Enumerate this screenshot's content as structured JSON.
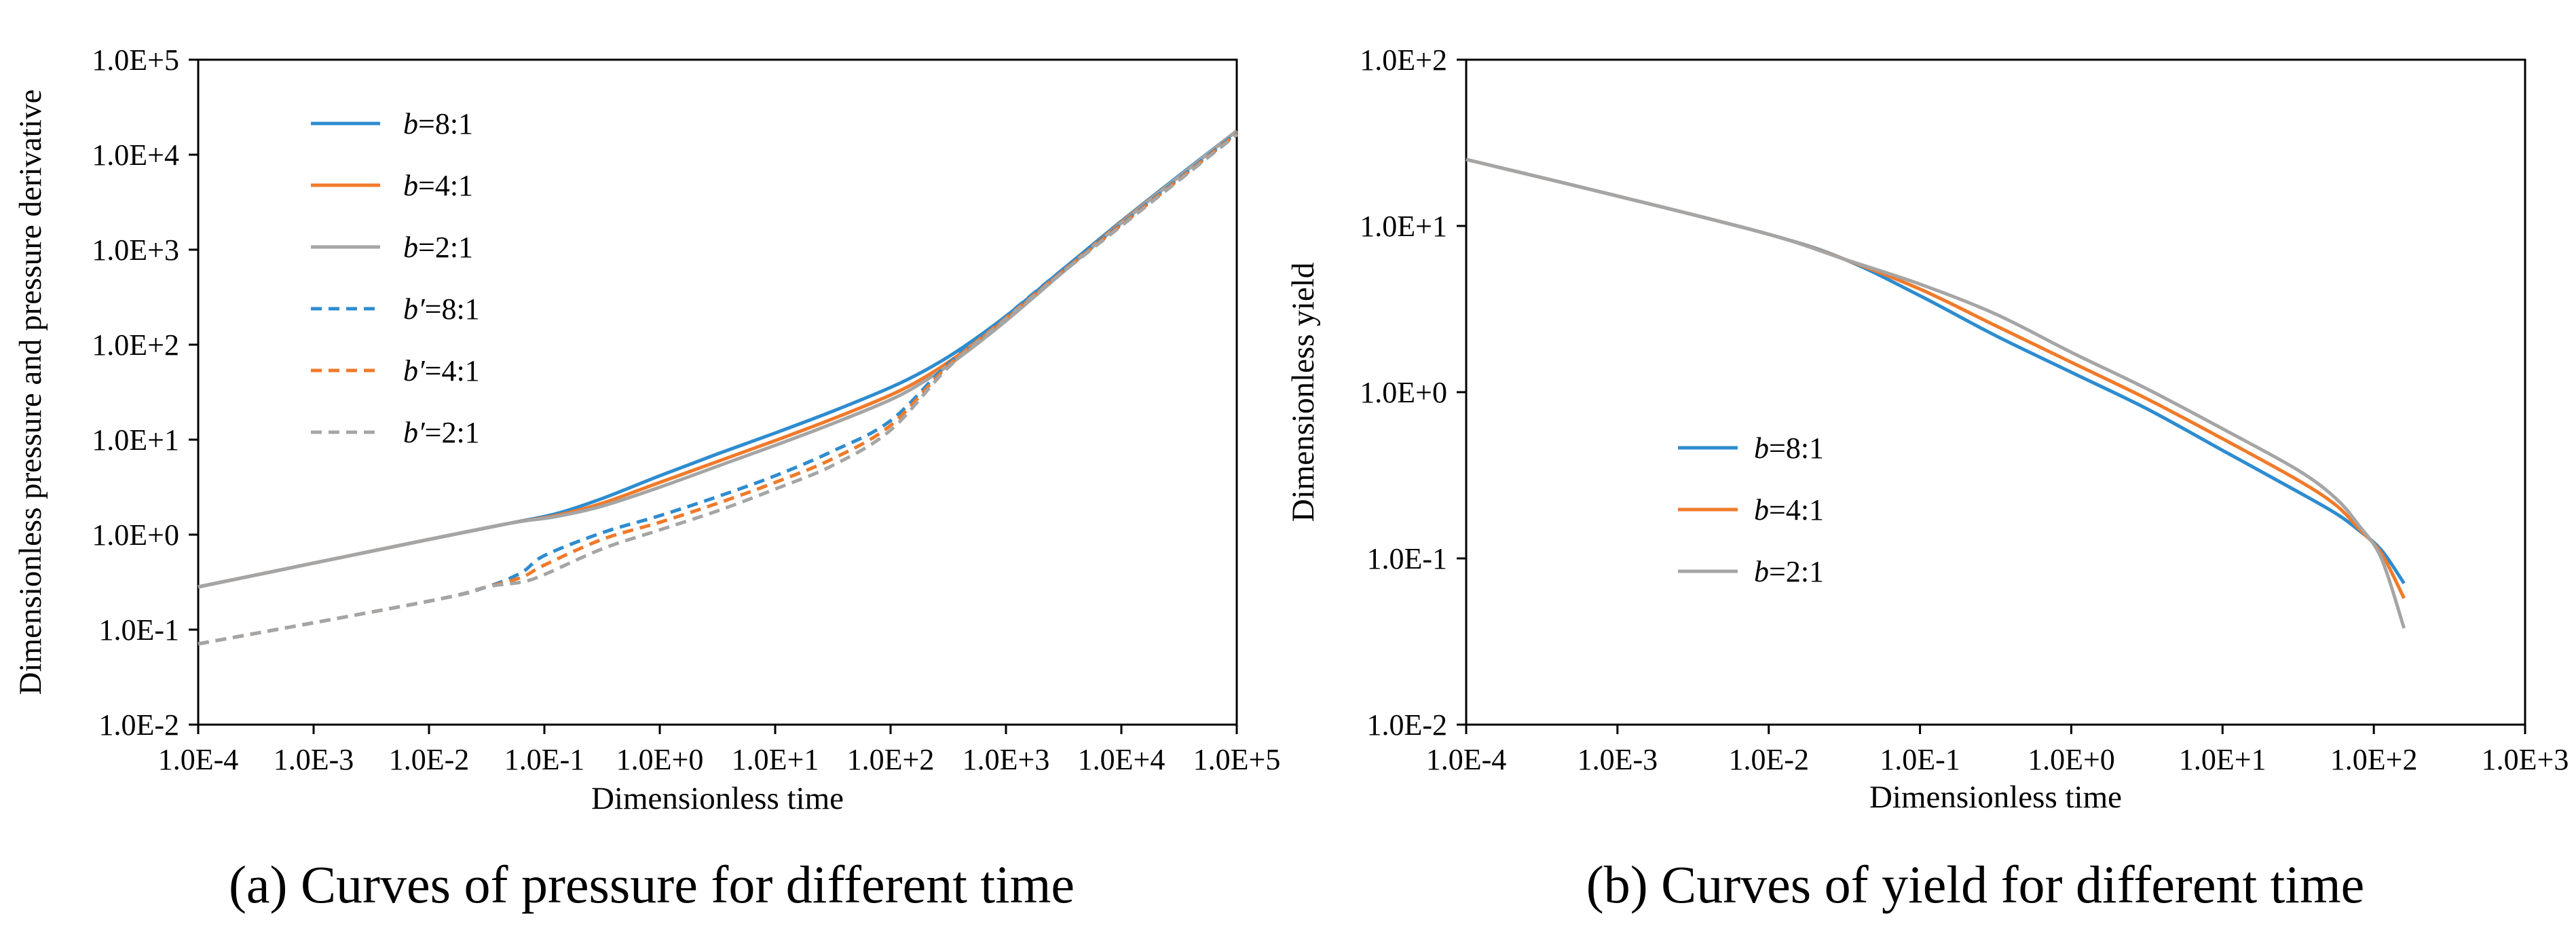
{
  "colors": {
    "blue": "#2e8ccf",
    "orange": "#f07a2a",
    "gray": "#a5a5a5"
  },
  "chart_data": [
    {
      "type": "line",
      "panel": "a",
      "caption": "(a) Curves of  pressure for different  time",
      "xlabel": "Dimensionless time",
      "ylabel": "Dimensionless pressure and pressure derivative",
      "x_scale": "log",
      "y_scale": "log",
      "xlim_exp": [
        -4,
        5
      ],
      "ylim_exp": [
        -2,
        5
      ],
      "xticks": [
        "1.0E-4",
        "1.0E-3",
        "1.0E-2",
        "1.0E-1",
        "1.0E+0",
        "1.0E+1",
        "1.0E+2",
        "1.0E+3",
        "1.0E+4",
        "1.0E+5"
      ],
      "yticks": [
        "1.0E-2",
        "1.0E-1",
        "1.0E+0",
        "1.0E+1",
        "1.0E+2",
        "1.0E+3",
        "1.0E+4",
        "1.0E+5"
      ],
      "legend_position": "top-left",
      "series": [
        {
          "name": "b=8:1",
          "prefix": "b",
          "suffix": "=8:1",
          "color": "blue",
          "dash": false,
          "log_x": [
            -4,
            -2,
            -1.3,
            -0.9,
            -0.5,
            0,
            0.5,
            1,
            1.5,
            2,
            2.3,
            2.6,
            3,
            3.5,
            4,
            4.5,
            5
          ],
          "log_y": [
            -0.55,
            -0.05,
            0.12,
            0.22,
            0.38,
            0.62,
            0.85,
            1.07,
            1.3,
            1.55,
            1.73,
            1.95,
            2.3,
            2.8,
            3.3,
            3.78,
            4.25
          ]
        },
        {
          "name": "b=4:1",
          "prefix": "b",
          "suffix": "=4:1",
          "color": "orange",
          "dash": false,
          "log_x": [
            -4,
            -2,
            -1.3,
            -0.9,
            -0.5,
            0,
            0.5,
            1,
            1.5,
            2,
            2.3,
            2.6,
            3,
            3.5,
            4,
            4.5,
            5
          ],
          "log_y": [
            -0.55,
            -0.05,
            0.12,
            0.2,
            0.33,
            0.55,
            0.77,
            0.99,
            1.22,
            1.47,
            1.66,
            1.9,
            2.27,
            2.78,
            3.29,
            3.77,
            4.25
          ]
        },
        {
          "name": "b=2:1",
          "prefix": "b",
          "suffix": "=2:1",
          "color": "gray",
          "dash": false,
          "log_x": [
            -4,
            -2,
            -1.3,
            -0.9,
            -0.5,
            0,
            0.5,
            1,
            1.5,
            2,
            2.3,
            2.6,
            3,
            3.5,
            4,
            4.5,
            5
          ],
          "log_y": [
            -0.55,
            -0.05,
            0.12,
            0.19,
            0.3,
            0.5,
            0.72,
            0.94,
            1.17,
            1.42,
            1.62,
            1.87,
            2.25,
            2.77,
            3.28,
            3.77,
            4.25
          ]
        },
        {
          "name": "b'=8:1",
          "prefix": "b′",
          "suffix": "=8:1",
          "color": "blue",
          "dash": true,
          "log_x": [
            -4,
            -2,
            -1.5,
            -1.2,
            -1,
            -0.5,
            0,
            0.5,
            1,
            1.5,
            2,
            2.5,
            3,
            3.5,
            4,
            4.5,
            5
          ],
          "log_y": [
            -1.15,
            -0.7,
            -0.55,
            -0.4,
            -0.22,
            0.02,
            0.2,
            0.4,
            0.62,
            0.88,
            1.2,
            1.8,
            2.3,
            2.8,
            3.27,
            3.75,
            4.23
          ]
        },
        {
          "name": "b'=4:1",
          "prefix": "b′",
          "suffix": "=4:1",
          "color": "orange",
          "dash": true,
          "log_x": [
            -4,
            -2,
            -1.5,
            -1.2,
            -1,
            -0.5,
            0,
            0.5,
            1,
            1.5,
            2,
            2.5,
            3,
            3.5,
            4,
            4.5,
            5
          ],
          "log_y": [
            -1.15,
            -0.7,
            -0.55,
            -0.45,
            -0.32,
            -0.05,
            0.13,
            0.33,
            0.55,
            0.8,
            1.15,
            1.78,
            2.28,
            2.78,
            3.26,
            3.74,
            4.22
          ]
        },
        {
          "name": "b'=2:1",
          "prefix": "b′",
          "suffix": "=2:1",
          "color": "gray",
          "dash": true,
          "log_x": [
            -4,
            -2,
            -1.5,
            -1.2,
            -1,
            -0.5,
            0,
            0.5,
            1,
            1.5,
            2,
            2.5,
            3,
            3.5,
            4,
            4.5,
            5
          ],
          "log_y": [
            -1.15,
            -0.7,
            -0.55,
            -0.5,
            -0.42,
            -0.15,
            0.05,
            0.25,
            0.48,
            0.73,
            1.1,
            1.76,
            2.27,
            2.77,
            3.25,
            3.73,
            4.21
          ]
        }
      ]
    },
    {
      "type": "line",
      "panel": "b",
      "caption": "(b) Curves of   yield  for different  time",
      "xlabel": "Dimensionless time",
      "ylabel": "Dimensionless yield",
      "x_scale": "log",
      "y_scale": "log",
      "xlim_exp": [
        -4,
        3
      ],
      "ylim_exp": [
        -2,
        2
      ],
      "xticks": [
        "1.0E-4",
        "1.0E-3",
        "1.0E-2",
        "1.0E-1",
        "1.0E+0",
        "1.0E+1",
        "1.0E+2",
        "1.0E+3"
      ],
      "yticks": [
        "1.0E-2",
        "1.0E-1",
        "1.0E+0",
        "1.0E+1",
        "1.0E+2"
      ],
      "legend_position": "center-left",
      "series": [
        {
          "name": "b=8:1",
          "prefix": "b",
          "suffix": "=8:1",
          "color": "blue",
          "dash": false,
          "log_x": [
            -4,
            -3,
            -2,
            -1.5,
            -1,
            -0.5,
            0,
            0.5,
            1,
            1.5,
            1.75,
            1.9,
            2.05,
            2.2
          ],
          "log_y": [
            1.4,
            1.18,
            0.95,
            0.8,
            0.58,
            0.34,
            0.12,
            -0.1,
            -0.35,
            -0.6,
            -0.73,
            -0.83,
            -0.95,
            -1.15
          ]
        },
        {
          "name": "b=4:1",
          "prefix": "b",
          "suffix": "=4:1",
          "color": "orange",
          "dash": false,
          "log_x": [
            -4,
            -3,
            -2,
            -1.5,
            -1,
            -0.5,
            0,
            0.5,
            1,
            1.5,
            1.75,
            1.9,
            2.05,
            2.2
          ],
          "log_y": [
            1.4,
            1.18,
            0.95,
            0.8,
            0.62,
            0.4,
            0.18,
            -0.04,
            -0.28,
            -0.53,
            -0.68,
            -0.82,
            -0.97,
            -1.24
          ]
        },
        {
          "name": "b=2:1",
          "prefix": "b",
          "suffix": "=2:1",
          "color": "gray",
          "dash": false,
          "log_x": [
            -4,
            -3,
            -2,
            -1.5,
            -1,
            -0.5,
            0,
            0.5,
            1,
            1.5,
            1.75,
            1.9,
            2.05,
            2.2
          ],
          "log_y": [
            1.4,
            1.18,
            0.95,
            0.8,
            0.65,
            0.47,
            0.24,
            0.02,
            -0.22,
            -0.47,
            -0.64,
            -0.8,
            -1.0,
            -1.42
          ]
        }
      ]
    }
  ]
}
